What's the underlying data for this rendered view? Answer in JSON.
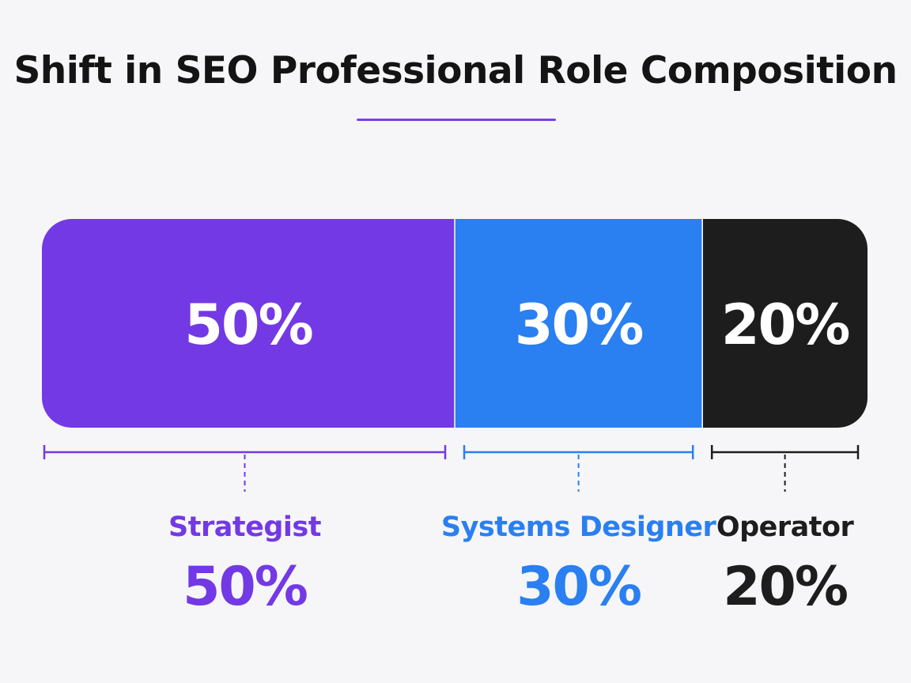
{
  "chart_data": {
    "type": "bar",
    "title": "Shift in SEO Professional Role Composition",
    "categories": [
      "Strategist",
      "Systems Designer",
      "Operator"
    ],
    "values": [
      50,
      30,
      20
    ],
    "segment_labels": [
      "50%",
      "30%",
      "20%"
    ],
    "value_labels": [
      "50%",
      "30%",
      "20%"
    ],
    "unit": "%",
    "colors": [
      "#7339e4",
      "#2a7ff1",
      "#1d1d1d"
    ],
    "title_rule_color": "#7b3fe4",
    "stacked": true,
    "orientation": "horizontal",
    "ylim": [
      0,
      100
    ],
    "grid": false,
    "legend": "none"
  }
}
